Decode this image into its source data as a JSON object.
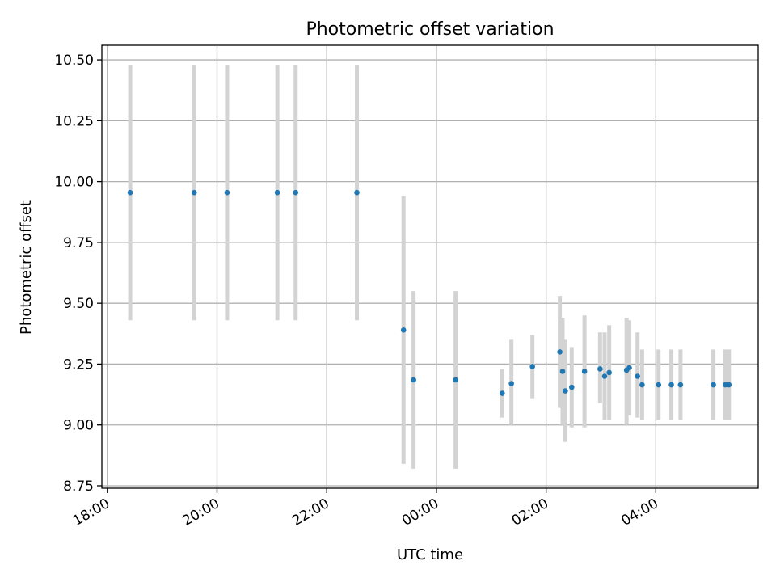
{
  "chart_data": {
    "type": "scatter",
    "title": "Photometric offset variation",
    "xlabel": "UTC time",
    "ylabel": "Photometric offset",
    "x_axis_type": "time",
    "xlim": [
      "17:54",
      "05:52"
    ],
    "ylim": [
      8.74,
      10.56
    ],
    "x_ticks": [
      "18:00",
      "20:00",
      "22:00",
      "00:00",
      "02:00",
      "04:00"
    ],
    "y_ticks": [
      "8.75",
      "9.00",
      "9.25",
      "9.50",
      "9.75",
      "10.00",
      "10.25",
      "10.50"
    ],
    "grid": true,
    "colors": {
      "point": "#1f77b4",
      "errorbar": "#d3d3d3",
      "grid": "#b0b0b0"
    },
    "points": [
      {
        "x": "18:25",
        "y": 9.955,
        "yerr_low": 9.43,
        "yerr_high": 10.48
      },
      {
        "x": "19:35",
        "y": 9.955,
        "yerr_low": 9.43,
        "yerr_high": 10.48
      },
      {
        "x": "20:11",
        "y": 9.955,
        "yerr_low": 9.43,
        "yerr_high": 10.48
      },
      {
        "x": "21:06",
        "y": 9.955,
        "yerr_low": 9.43,
        "yerr_high": 10.48
      },
      {
        "x": "21:26",
        "y": 9.955,
        "yerr_low": 9.43,
        "yerr_high": 10.48
      },
      {
        "x": "22:33",
        "y": 9.955,
        "yerr_low": 9.43,
        "yerr_high": 10.48
      },
      {
        "x": "23:24",
        "y": 9.39,
        "yerr_low": 8.84,
        "yerr_high": 9.94
      },
      {
        "x": "23:35",
        "y": 9.185,
        "yerr_low": 8.82,
        "yerr_high": 9.55
      },
      {
        "x": "00:21",
        "y": 9.185,
        "yerr_low": 8.82,
        "yerr_high": 9.55
      },
      {
        "x": "01:12",
        "y": 9.13,
        "yerr_low": 9.03,
        "yerr_high": 9.23
      },
      {
        "x": "01:22",
        "y": 9.17,
        "yerr_low": 9.0,
        "yerr_high": 9.35
      },
      {
        "x": "01:45",
        "y": 9.24,
        "yerr_low": 9.11,
        "yerr_high": 9.37
      },
      {
        "x": "02:15",
        "y": 9.3,
        "yerr_low": 9.07,
        "yerr_high": 9.53
      },
      {
        "x": "02:18",
        "y": 9.22,
        "yerr_low": 9.0,
        "yerr_high": 9.44
      },
      {
        "x": "02:21",
        "y": 9.14,
        "yerr_low": 8.93,
        "yerr_high": 9.35
      },
      {
        "x": "02:28",
        "y": 9.155,
        "yerr_low": 8.99,
        "yerr_high": 9.32
      },
      {
        "x": "02:42",
        "y": 9.22,
        "yerr_low": 8.99,
        "yerr_high": 9.45
      },
      {
        "x": "02:59",
        "y": 9.23,
        "yerr_low": 9.09,
        "yerr_high": 9.38
      },
      {
        "x": "03:04",
        "y": 9.2,
        "yerr_low": 9.02,
        "yerr_high": 9.38
      },
      {
        "x": "03:09",
        "y": 9.215,
        "yerr_low": 9.02,
        "yerr_high": 9.41
      },
      {
        "x": "03:28",
        "y": 9.225,
        "yerr_low": 9.0,
        "yerr_high": 9.44
      },
      {
        "x": "03:31",
        "y": 9.235,
        "yerr_low": 9.04,
        "yerr_high": 9.43
      },
      {
        "x": "03:40",
        "y": 9.2,
        "yerr_low": 9.03,
        "yerr_high": 9.38
      },
      {
        "x": "03:45",
        "y": 9.165,
        "yerr_low": 9.02,
        "yerr_high": 9.31
      },
      {
        "x": "04:03",
        "y": 9.165,
        "yerr_low": 9.02,
        "yerr_high": 9.31
      },
      {
        "x": "04:17",
        "y": 9.165,
        "yerr_low": 9.02,
        "yerr_high": 9.31
      },
      {
        "x": "04:27",
        "y": 9.165,
        "yerr_low": 9.02,
        "yerr_high": 9.31
      },
      {
        "x": "05:03",
        "y": 9.165,
        "yerr_low": 9.02,
        "yerr_high": 9.31
      },
      {
        "x": "05:16",
        "y": 9.165,
        "yerr_low": 9.02,
        "yerr_high": 9.31
      },
      {
        "x": "05:20",
        "y": 9.165,
        "yerr_low": 9.02,
        "yerr_high": 9.31
      }
    ]
  }
}
